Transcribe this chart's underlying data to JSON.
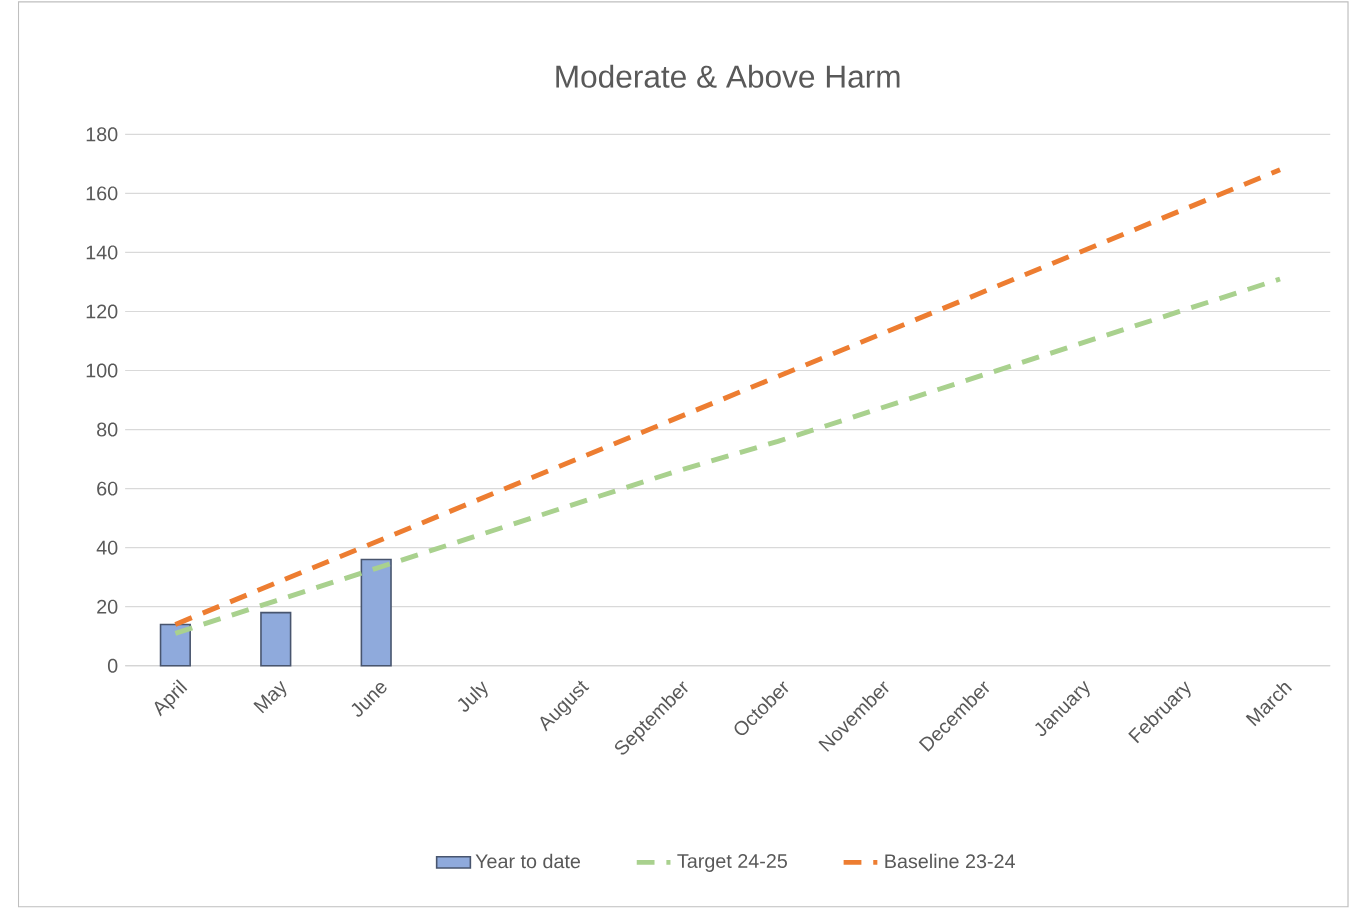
{
  "chart_data": {
    "type": "bar",
    "title": "Moderate & Above Harm",
    "categories": [
      "April",
      "May",
      "June",
      "July",
      "August",
      "September",
      "October",
      "November",
      "December",
      "January",
      "February",
      "March"
    ],
    "series": [
      {
        "name": "Year to date",
        "type": "bar",
        "color": "#8faadc",
        "values": [
          14,
          18,
          36,
          null,
          null,
          null,
          null,
          null,
          null,
          null,
          null,
          null
        ]
      },
      {
        "name": "Target 24-25",
        "type": "line",
        "line_style": "dashed",
        "color": "#a9d18e",
        "values": [
          11,
          22,
          33,
          44,
          55,
          66,
          76,
          87,
          98,
          109,
          120,
          131
        ]
      },
      {
        "name": "Baseline 23-24",
        "type": "line",
        "line_style": "dashed",
        "color": "#ed7d31",
        "values": [
          14,
          28,
          42,
          56,
          70,
          84,
          98,
          112,
          126,
          140,
          154,
          168
        ]
      }
    ],
    "ylim": [
      0,
      180
    ],
    "yticks": [
      0,
      20,
      40,
      60,
      80,
      100,
      120,
      140,
      160,
      180
    ],
    "grid": "y",
    "legend": "bottom"
  }
}
